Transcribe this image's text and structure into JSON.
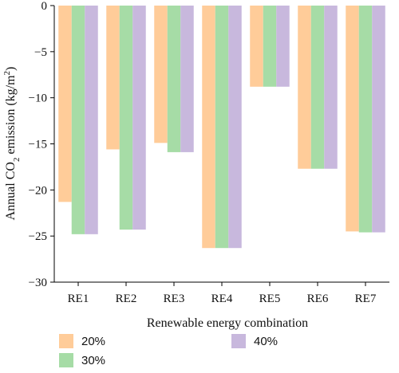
{
  "chart_data": {
    "type": "bar",
    "categories": [
      "RE1",
      "RE2",
      "RE3",
      "RE4",
      "RE5",
      "RE6",
      "RE7"
    ],
    "series": [
      {
        "name": "20%",
        "color": "#FFCC99",
        "values": [
          -21.3,
          -15.6,
          -14.9,
          -26.3,
          -8.8,
          -17.7,
          -24.5
        ]
      },
      {
        "name": "30%",
        "color": "#A6DCA6",
        "values": [
          -24.8,
          -24.3,
          -15.9,
          -26.3,
          -8.8,
          -17.7,
          -24.6
        ]
      },
      {
        "name": "40%",
        "color": "#C8B8DD",
        "values": [
          -24.8,
          -24.3,
          -15.9,
          -26.3,
          -8.8,
          -17.7,
          -24.6
        ]
      }
    ],
    "xlabel": "Renewable energy combination",
    "ylabel_parts": {
      "prefix": "Annual CO",
      "sub": "2",
      "middle": " emission (kg/m",
      "sup": "2",
      "suffix": ")"
    },
    "ylim": [
      -30,
      0
    ],
    "yticks": [
      0,
      -5,
      -10,
      -15,
      -20,
      -25,
      -30
    ],
    "legend_position": "bottom",
    "grid": false
  }
}
